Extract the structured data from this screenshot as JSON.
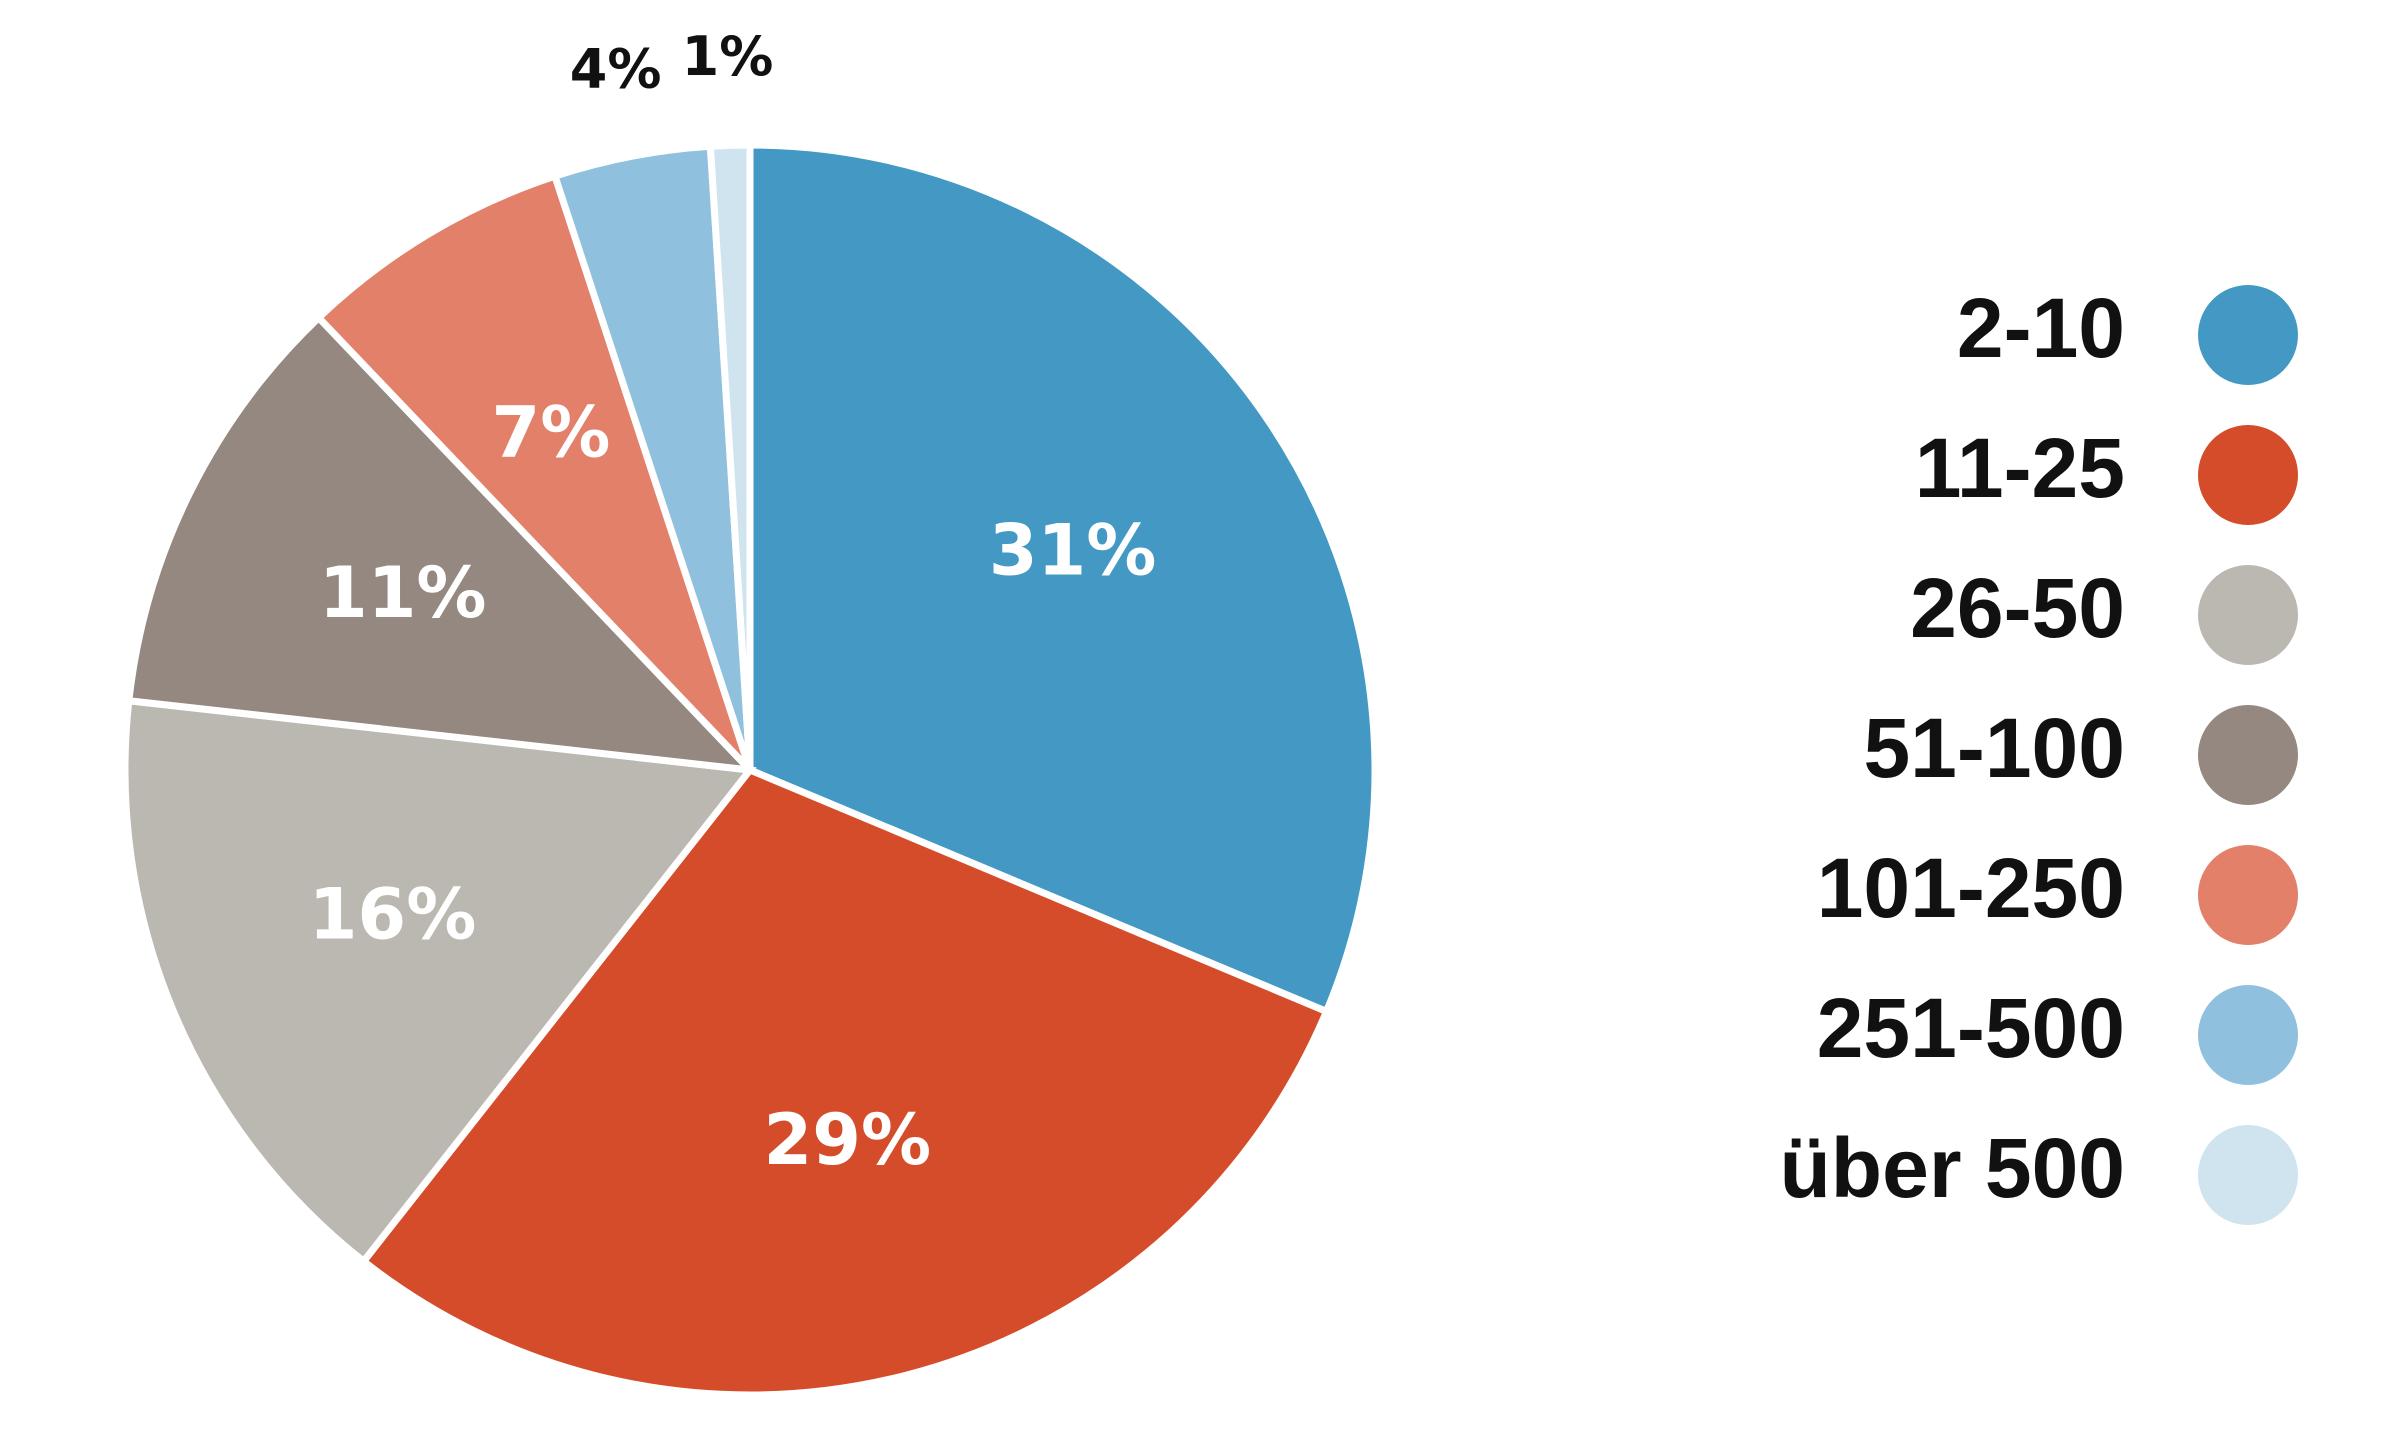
{
  "chart_data": {
    "type": "pie",
    "title": "",
    "start_angle_deg": 0,
    "direction": "clockwise",
    "slices": [
      {
        "label": "2-10",
        "value": 31,
        "value_label": "31%",
        "color": "#4399c4",
        "text_color": "#ffffff"
      },
      {
        "label": "11-25",
        "value": 29,
        "value_label": "29%",
        "color": "#d54c2a",
        "text_color": "#ffffff"
      },
      {
        "label": "26-50",
        "value": 16,
        "value_label": "16%",
        "color": "#bbb8b1",
        "text_color": "#ffffff"
      },
      {
        "label": "51-100",
        "value": 11,
        "value_label": "11%",
        "color": "#948880",
        "text_color": "#ffffff"
      },
      {
        "label": "101-250",
        "value": 7,
        "value_label": "7%",
        "color": "#e2806a",
        "text_color": "#ffffff"
      },
      {
        "label": "251-500",
        "value": 4,
        "value_label": "4%",
        "color": "#8fc1df",
        "text_color": "#111111"
      },
      {
        "label": "über 500",
        "value": 1,
        "value_label": "1%",
        "color": "#cfe4ef",
        "text_color": "#111111"
      }
    ],
    "legend_placement": "right"
  }
}
